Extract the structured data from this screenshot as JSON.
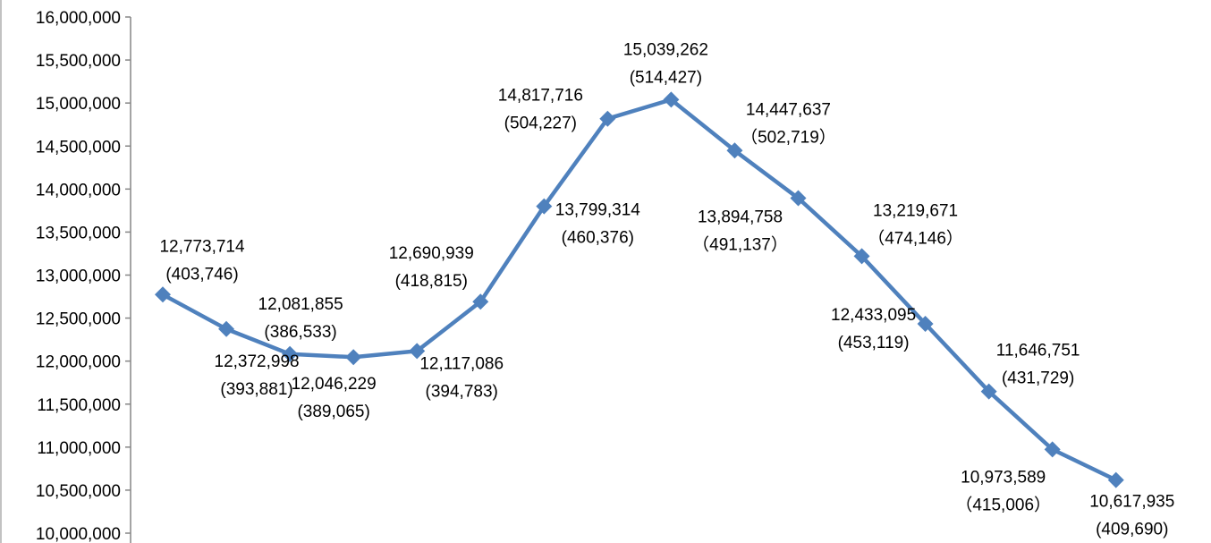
{
  "chart_data": {
    "type": "line",
    "title": "",
    "xlabel": "",
    "ylabel": "",
    "ylim": [
      10000000,
      16000000
    ],
    "y_ticks": [
      "10,000,000",
      "10,500,000",
      "11,000,000",
      "11,500,000",
      "12,000,000",
      "12,500,000",
      "13,000,000",
      "13,500,000",
      "14,000,000",
      "14,500,000",
      "15,000,000",
      "15,500,000",
      "16,000,000"
    ],
    "grid": false,
    "legend": "none",
    "marker": "diamond",
    "color": "#4F81BD",
    "series": [
      {
        "values": [
          12773714,
          12372998,
          12081855,
          12046229,
          12117086,
          12690939,
          13799314,
          14817716,
          15039262,
          14447637,
          13894758,
          13219671,
          12433095,
          11646751,
          10973589,
          10617935
        ]
      }
    ],
    "labels": [
      {
        "value": "12,773,714",
        "sub": "(403,746)"
      },
      {
        "value": "12,372,998",
        "sub": "(393,881)"
      },
      {
        "value": "12,081,855",
        "sub": "(386,533)"
      },
      {
        "value": "12,046,229",
        "sub": "(389,065)"
      },
      {
        "value": "12,117,086",
        "sub": "(394,783)"
      },
      {
        "value": "12,690,939",
        "sub": "(418,815)"
      },
      {
        "value": "13,799,314",
        "sub": "(460,376)"
      },
      {
        "value": "14,817,716",
        "sub": "(504,227)"
      },
      {
        "value": "15,039,262",
        "sub": "(514,427)"
      },
      {
        "value": "14,447,637",
        "sub": "（502,719）"
      },
      {
        "value": "13,894,758",
        "sub": "（491,137）"
      },
      {
        "value": "13,219,671",
        "sub": "（474,146）"
      },
      {
        "value": "12,433,095",
        "sub": "(453,119)"
      },
      {
        "value": "11,646,751",
        "sub": "(431,729)"
      },
      {
        "value": "10,973,589",
        "sub": "（415,006）"
      },
      {
        "value": "10,617,935",
        "sub": "(409,690)"
      }
    ]
  }
}
